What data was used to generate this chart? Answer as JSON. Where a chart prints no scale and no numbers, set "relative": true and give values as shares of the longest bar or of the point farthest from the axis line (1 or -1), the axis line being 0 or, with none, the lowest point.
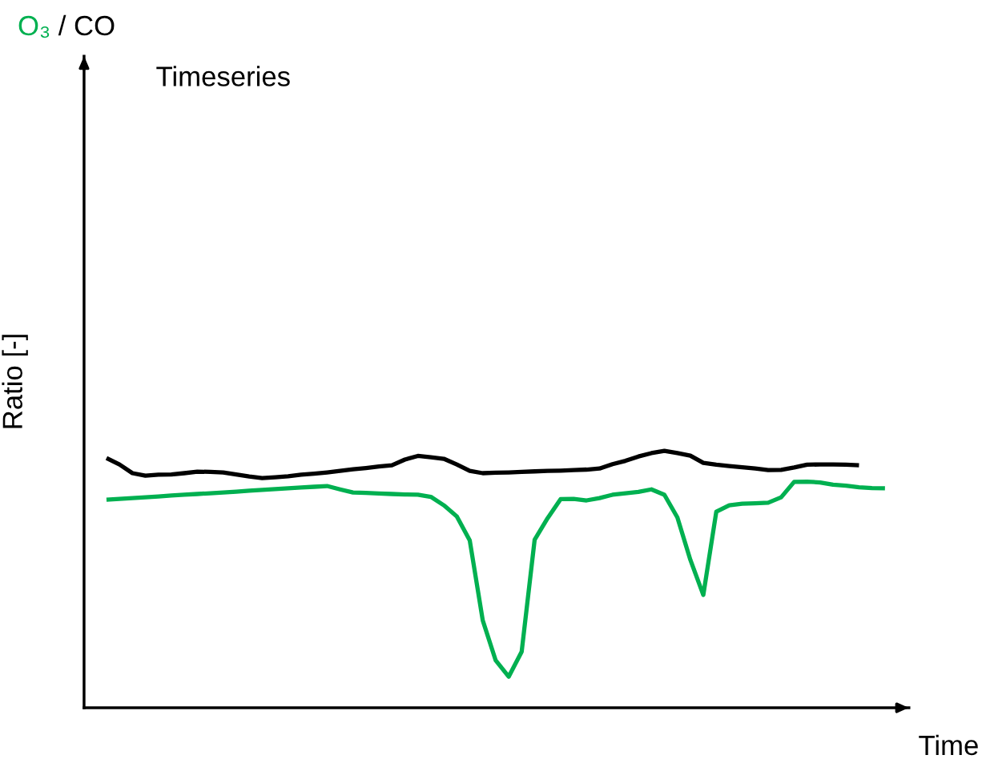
{
  "chart_data": {
    "type": "line",
    "title": "Timeseries",
    "xlabel": "Time",
    "relative": true,
    "tick_labels": false,
    "annotations": [
      "/",
      "Ratio [-]"
    ],
    "categories": [
      null,
      null,
      null,
      null,
      null,
      null,
      null,
      null,
      null,
      null,
      null,
      null,
      null,
      null,
      null,
      null,
      null,
      null,
      null,
      null,
      null,
      null,
      null,
      null,
      null,
      null,
      null,
      null,
      null,
      null,
      null,
      null,
      null,
      null,
      null,
      null,
      null,
      null,
      null,
      null,
      null,
      null,
      null,
      null,
      null,
      null,
      null,
      null,
      null,
      null,
      null,
      null,
      null,
      null,
      null,
      null,
      null,
      null,
      null,
      null,
      null
    ],
    "series": [
      {
        "name": "O₃",
        "color": "#00b050",
        "values": [
          0.81,
          0.813,
          0.816,
          0.819,
          0.822,
          0.826,
          0.829,
          0.832,
          0.835,
          0.838,
          0.841,
          0.845,
          0.848,
          0.851,
          0.854,
          0.857,
          0.86,
          0.863,
          0.85,
          0.838,
          0.836,
          0.834,
          0.832,
          0.83,
          0.829,
          0.821,
          0.788,
          0.745,
          0.651,
          0.34,
          0.184,
          0.121,
          0.218,
          0.654,
          0.738,
          0.812,
          0.813,
          0.807,
          0.816,
          0.829,
          0.835,
          0.84,
          0.85,
          0.829,
          0.741,
          0.576,
          0.439,
          0.763,
          0.788,
          0.794,
          0.796,
          0.798,
          0.819,
          0.879,
          0.88,
          0.877,
          0.868,
          0.864,
          0.858,
          0.855,
          0.854
        ]
      },
      {
        "name": "CO",
        "color": "#000000",
        "values": [
          0.972,
          0.947,
          0.913,
          0.903,
          0.907,
          0.908,
          0.913,
          0.919,
          0.918,
          0.916,
          0.908,
          0.9,
          0.894,
          0.897,
          0.901,
          0.907,
          0.911,
          0.916,
          0.922,
          0.928,
          0.933,
          0.939,
          0.944,
          0.966,
          0.98,
          0.975,
          0.969,
          0.947,
          0.922,
          0.913,
          0.915,
          0.916,
          0.918,
          0.92,
          0.922,
          0.923,
          0.925,
          0.927,
          0.931,
          0.948,
          0.961,
          0.978,
          0.991,
          1.0,
          0.991,
          0.981,
          0.953,
          0.946,
          0.941,
          0.936,
          0.931,
          0.925,
          0.926,
          0.935,
          0.946,
          0.947,
          0.947,
          0.946,
          0.944,
          null,
          null
        ]
      }
    ]
  }
}
